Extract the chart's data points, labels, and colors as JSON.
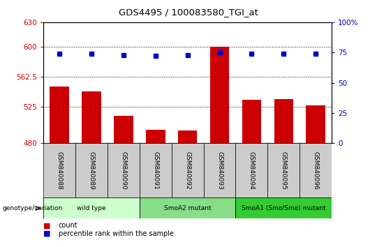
{
  "title": "GDS4495 / 100083580_TGI_at",
  "samples": [
    "GSM840088",
    "GSM840089",
    "GSM840090",
    "GSM840091",
    "GSM840092",
    "GSM840093",
    "GSM840094",
    "GSM840095",
    "GSM840096"
  ],
  "counts": [
    550,
    544,
    514,
    497,
    496,
    600,
    534,
    535,
    527
  ],
  "percentile_ranks": [
    74,
    74,
    73,
    72,
    73,
    75,
    74,
    74,
    74
  ],
  "ylim_left": [
    480,
    630
  ],
  "ylim_right": [
    0,
    100
  ],
  "yticks_left": [
    480,
    525,
    562.5,
    600,
    630
  ],
  "yticks_right": [
    0,
    25,
    50,
    75,
    100
  ],
  "bar_color": "#cc0000",
  "dot_color": "#0000cc",
  "groups": [
    {
      "label": "wild type",
      "start": 0,
      "end": 2,
      "color": "#ccffcc"
    },
    {
      "label": "SmoA2 mutant",
      "start": 3,
      "end": 5,
      "color": "#88dd88"
    },
    {
      "label": "SmoA1 (Smo/Smo) mutant",
      "start": 6,
      "end": 8,
      "color": "#33cc33"
    }
  ],
  "genotype_label": "genotype/variation",
  "legend_count_label": "count",
  "legend_percentile_label": "percentile rank within the sample",
  "sample_bg_color": "#cccccc"
}
